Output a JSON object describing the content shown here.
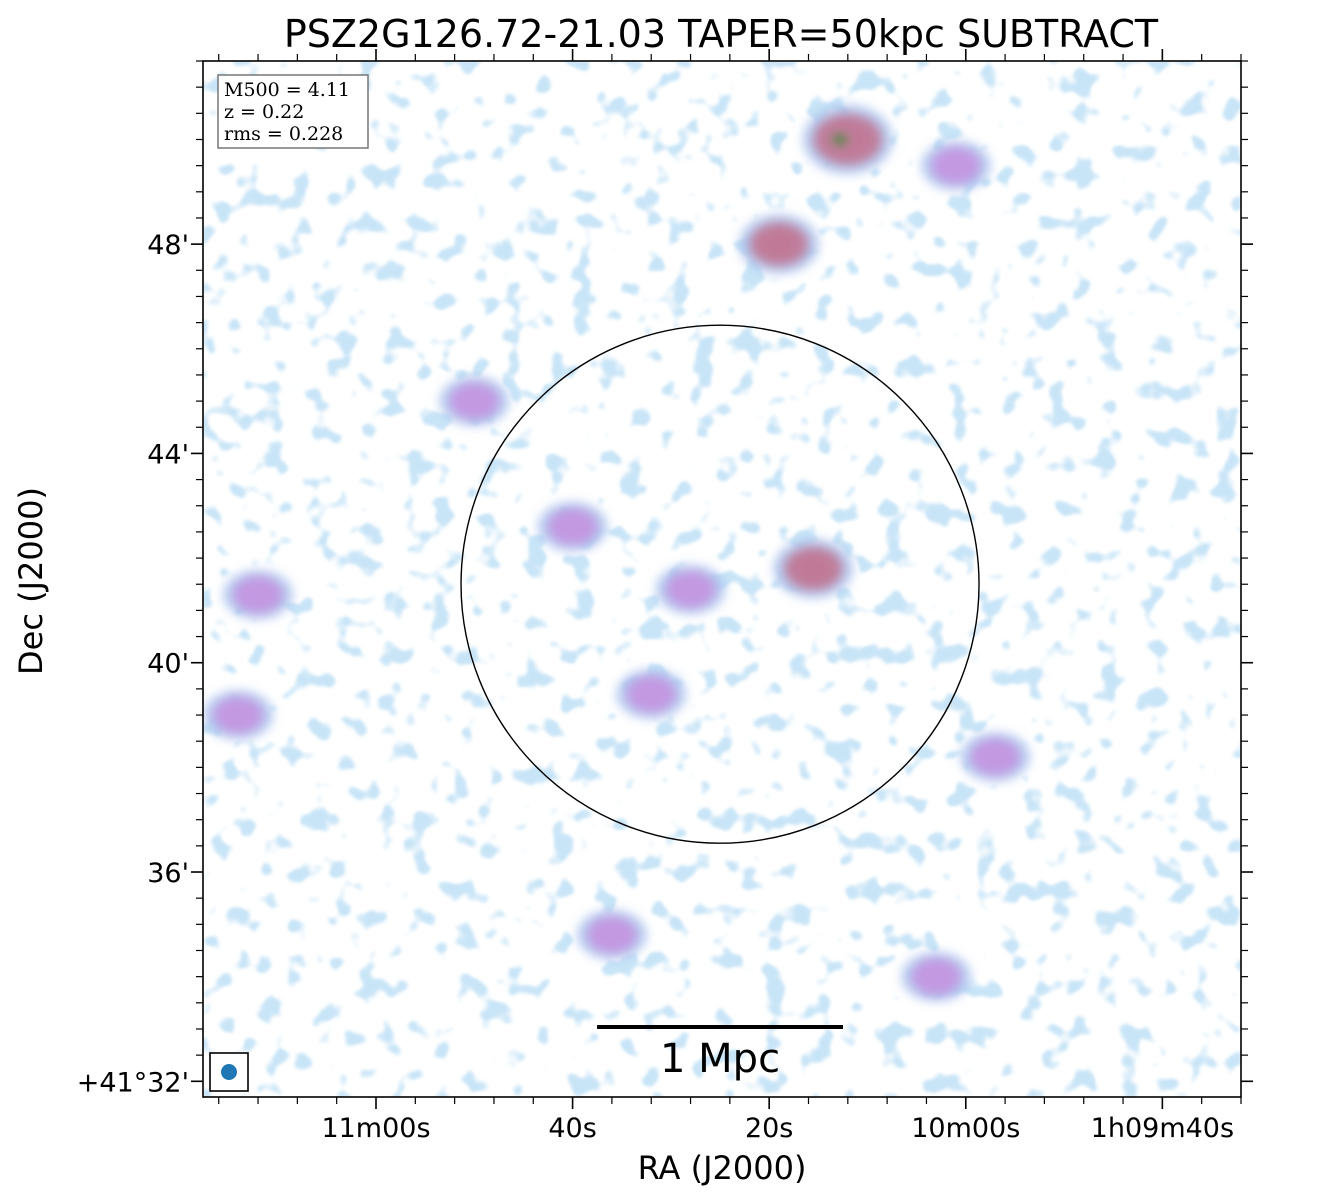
{
  "chart_data": {
    "type": "heatmap",
    "title": "PSZ2G126.72-21.03 TAPER=50kpc SUBTRACT",
    "xlabel": "RA (J2000)",
    "ylabel": "Dec (J2000)",
    "x_ticks": [
      {
        "ra_sec": 60,
        "label": "11m00s"
      },
      {
        "ra_sec": 40,
        "label": "40s"
      },
      {
        "ra_sec": 20,
        "label": "20s"
      },
      {
        "ra_sec": 0,
        "label": "10m00s"
      },
      {
        "ra_sec": -20,
        "label": "1h09m40s"
      }
    ],
    "y_ticks": [
      {
        "dec_arcmin": 48,
        "label": "48'"
      },
      {
        "dec_arcmin": 44,
        "label": "44'"
      },
      {
        "dec_arcmin": 40,
        "label": "40'"
      },
      {
        "dec_arcmin": 36,
        "label": "36'"
      },
      {
        "dec_arcmin": 32,
        "label": "+41°32'"
      }
    ],
    "xlim_ra_sec": [
      77.6,
      -28.0
    ],
    "ylim_dec_arcmin": [
      31.7,
      51.5
    ],
    "info_box": [
      "M500 = 4.11",
      "z = 0.22",
      "rms = 0.228"
    ],
    "circle": {
      "center_ra_sec": 25.0,
      "center_dec_arcmin": 41.5,
      "radius_arcmin": 4.95
    },
    "scale_bar": {
      "label": "1 Mpc",
      "length_arcmin": 4.7
    },
    "beam": {
      "color": "#1f77b4"
    },
    "colors": {
      "low": "#cdeaef",
      "mid": "#aac4ee",
      "high": "#c496e0",
      "peak": "#c07a98",
      "max": "#2e8a2e"
    },
    "emission_sources": [
      {
        "ra_sec": 12.0,
        "dec_arcmin": 50.0,
        "level": 5,
        "label": "bright source top right"
      },
      {
        "ra_sec": 19.0,
        "dec_arcmin": 48.0,
        "level": 4
      },
      {
        "ra_sec": 15.5,
        "dec_arcmin": 41.8,
        "level": 4
      },
      {
        "ra_sec": 28.0,
        "dec_arcmin": 41.4,
        "level": 3
      },
      {
        "ra_sec": 40.0,
        "dec_arcmin": 42.6,
        "level": 3
      },
      {
        "ra_sec": 72.0,
        "dec_arcmin": 41.3,
        "level": 3
      },
      {
        "ra_sec": 74.0,
        "dec_arcmin": 39.0,
        "level": 3
      },
      {
        "ra_sec": 50.0,
        "dec_arcmin": 45.0,
        "level": 3
      },
      {
        "ra_sec": 3.0,
        "dec_arcmin": 34.0,
        "level": 3
      },
      {
        "ra_sec": 36.0,
        "dec_arcmin": 34.8,
        "level": 3
      },
      {
        "ra_sec": 32.0,
        "dec_arcmin": 39.4,
        "level": 3
      },
      {
        "ra_sec": -3.0,
        "dec_arcmin": 38.2,
        "level": 3
      },
      {
        "ra_sec": 1.0,
        "dec_arcmin": 49.5,
        "level": 3
      }
    ]
  }
}
